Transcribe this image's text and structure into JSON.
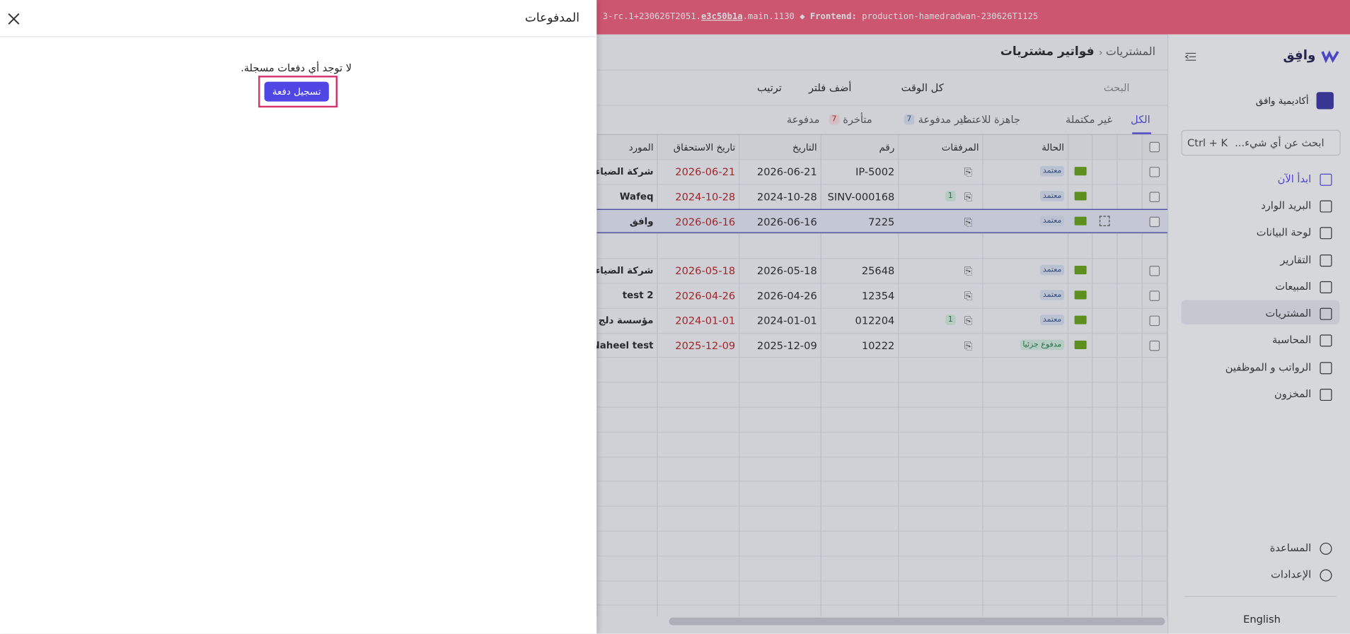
{
  "banner": {
    "version_prefix": "3-rc.1+230626T2051.",
    "commit": "e3c50b1a",
    "version_suffix": ".main.1130",
    "frontend_label": "Frontend:",
    "frontend": "production-hamedradwan-230626T1125"
  },
  "sidebar": {
    "logo": "وافِق",
    "organization": "أكاديمية وافق",
    "search": "ابحث عن أي شيء...",
    "shortcut": "Ctrl + K",
    "nav": [
      "ابدأ الآن",
      "البريد الوارد",
      "لوحة البيانات",
      "التقارير",
      "المبيعات",
      "المشتريات",
      "المحاسبة",
      "الرواتب و الموظفين",
      "المخزون"
    ],
    "bottom": [
      "المساعدة",
      "الإعدادات"
    ],
    "language": "English"
  },
  "breadcrumb": [
    "المشتريات",
    "فواتير مشتريات"
  ],
  "toolbar": {
    "search": "البحث",
    "time": "كل الوقت",
    "filter": "أضف فلتر",
    "sort": "ترتيب"
  },
  "tabs": [
    {
      "label": "الكل"
    },
    {
      "label": "غير مكتملة"
    },
    {
      "label": "جاهزة للاعتماد"
    },
    {
      "label": "غير مدفوعة",
      "count": 7
    },
    {
      "label": "متأخرة",
      "count": 7
    },
    {
      "label": "مدفوعة"
    }
  ],
  "table": {
    "headers": [
      "الحالة",
      "المرفقات",
      "رقم",
      "التاريخ",
      "تاريخ الاستحقاق",
      "المورد"
    ],
    "rows": [
      {
        "status": "معتمد",
        "number": "IP-5002",
        "date": "2026-06-21",
        "due": "2026-06-21",
        "supplier": "شركة الضياء"
      },
      {
        "status": "معتمد",
        "attachments": 1,
        "number": "SINV-000168",
        "date": "2024-10-28",
        "due": "2024-10-28",
        "supplier": "Wafeq"
      },
      {
        "status": "معتمد",
        "number": "7225",
        "date": "2026-06-16",
        "due": "2026-06-16",
        "supplier": "وافق",
        "selected": true
      },
      {
        "status": "معتمد",
        "number": "25648",
        "date": "2026-05-18",
        "due": "2026-05-18",
        "supplier": "شركة الضياء"
      },
      {
        "status": "معتمد",
        "number": "12354",
        "date": "2026-04-26",
        "due": "2026-04-26",
        "supplier": "test 2"
      },
      {
        "status": "معتمد",
        "attachments": 1,
        "number": "012204",
        "date": "2024-01-01",
        "due": "2024-01-01",
        "supplier": "مؤسسة دلج ل"
      },
      {
        "status": "مدفوع جزئيا",
        "number": "10222",
        "date": "2025-12-09",
        "due": "2025-12-09",
        "supplier": "Naheel test"
      }
    ]
  },
  "panel": {
    "title": "المدفوعات",
    "empty_message": "لا توجد أي دفعات مسجلة.",
    "button": "تسجيل دفعة"
  }
}
